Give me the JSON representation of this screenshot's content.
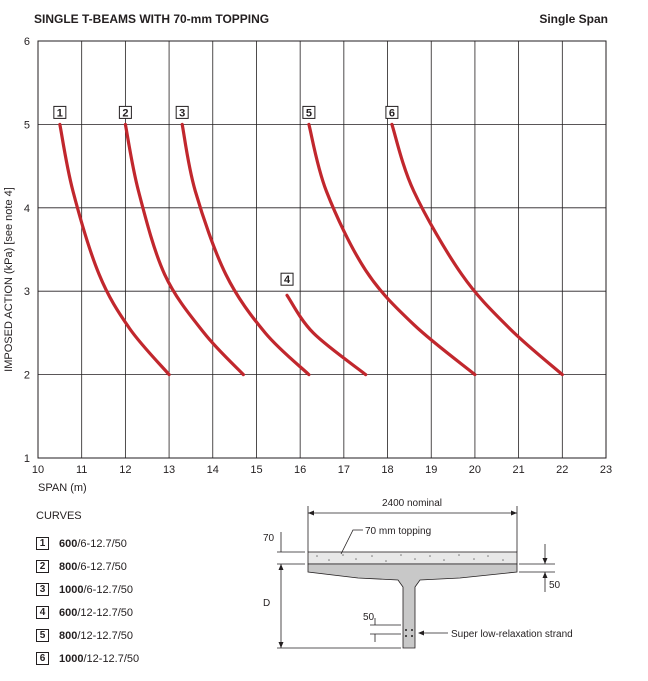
{
  "header": {
    "title": "SINGLE T-BEAMS WITH 70-mm TOPPING",
    "span_type": "Single Span"
  },
  "chart_data": {
    "type": "line",
    "xlabel": "SPAN (m)",
    "ylabel": "IMPOSED ACTION (kPa) [see note 4]",
    "xlim": [
      10,
      23
    ],
    "ylim": [
      1,
      6
    ],
    "xticks": [
      10,
      11,
      12,
      13,
      14,
      15,
      16,
      17,
      18,
      19,
      20,
      21,
      22,
      23
    ],
    "yticks": [
      1,
      2,
      3,
      4,
      5,
      6
    ],
    "grid": true,
    "line_color": "#c1272d",
    "series": [
      {
        "name": "1",
        "x": [
          10.5,
          10.8,
          11.4,
          12.1,
          13.0
        ],
        "y": [
          5.0,
          4.2,
          3.2,
          2.55,
          2.0
        ]
      },
      {
        "name": "2",
        "x": [
          12.0,
          12.3,
          12.9,
          13.8,
          14.7
        ],
        "y": [
          5.0,
          4.2,
          3.2,
          2.5,
          2.0
        ]
      },
      {
        "name": "3",
        "x": [
          13.3,
          13.6,
          14.3,
          15.2,
          16.2
        ],
        "y": [
          5.0,
          4.2,
          3.2,
          2.5,
          2.0
        ]
      },
      {
        "name": "4",
        "x": [
          15.7,
          16.3,
          17.5
        ],
        "y": [
          2.95,
          2.5,
          2.0
        ]
      },
      {
        "name": "5",
        "x": [
          16.2,
          16.6,
          17.5,
          18.6,
          20.0
        ],
        "y": [
          5.0,
          4.2,
          3.25,
          2.6,
          2.0
        ]
      },
      {
        "name": "6",
        "x": [
          18.1,
          18.6,
          19.7,
          20.8,
          22.0
        ],
        "y": [
          5.0,
          4.2,
          3.2,
          2.55,
          2.0
        ]
      }
    ],
    "curve_markers": [
      {
        "label": "1",
        "x": 10.5,
        "y": 5.0
      },
      {
        "label": "2",
        "x": 12.0,
        "y": 5.0
      },
      {
        "label": "3",
        "x": 13.3,
        "y": 5.0
      },
      {
        "label": "4",
        "x": 15.7,
        "y": 3.0
      },
      {
        "label": "5",
        "x": 16.2,
        "y": 5.0
      },
      {
        "label": "6",
        "x": 18.1,
        "y": 5.0
      }
    ]
  },
  "legend": {
    "title": "CURVES",
    "items": [
      {
        "num": "1",
        "bold": "600",
        "rest": "/6-12.7/50"
      },
      {
        "num": "2",
        "bold": "800",
        "rest": "/6-12.7/50"
      },
      {
        "num": "3",
        "bold": "1000",
        "rest": "/6-12.7/50"
      },
      {
        "num": "4",
        "bold": "600",
        "rest": "/12-12.7/50"
      },
      {
        "num": "5",
        "bold": "800",
        "rest": "/12-12.7/50"
      },
      {
        "num": "6",
        "bold": "1000",
        "rest": "/12-12.7/50"
      }
    ]
  },
  "section": {
    "width_label": "2400 nominal",
    "topping_label": "70 mm topping",
    "topping_dim": "70",
    "depth_label": "D",
    "flange_dim": "50",
    "strand_dim": "50",
    "strand_label": "Super low-relaxation strand"
  }
}
